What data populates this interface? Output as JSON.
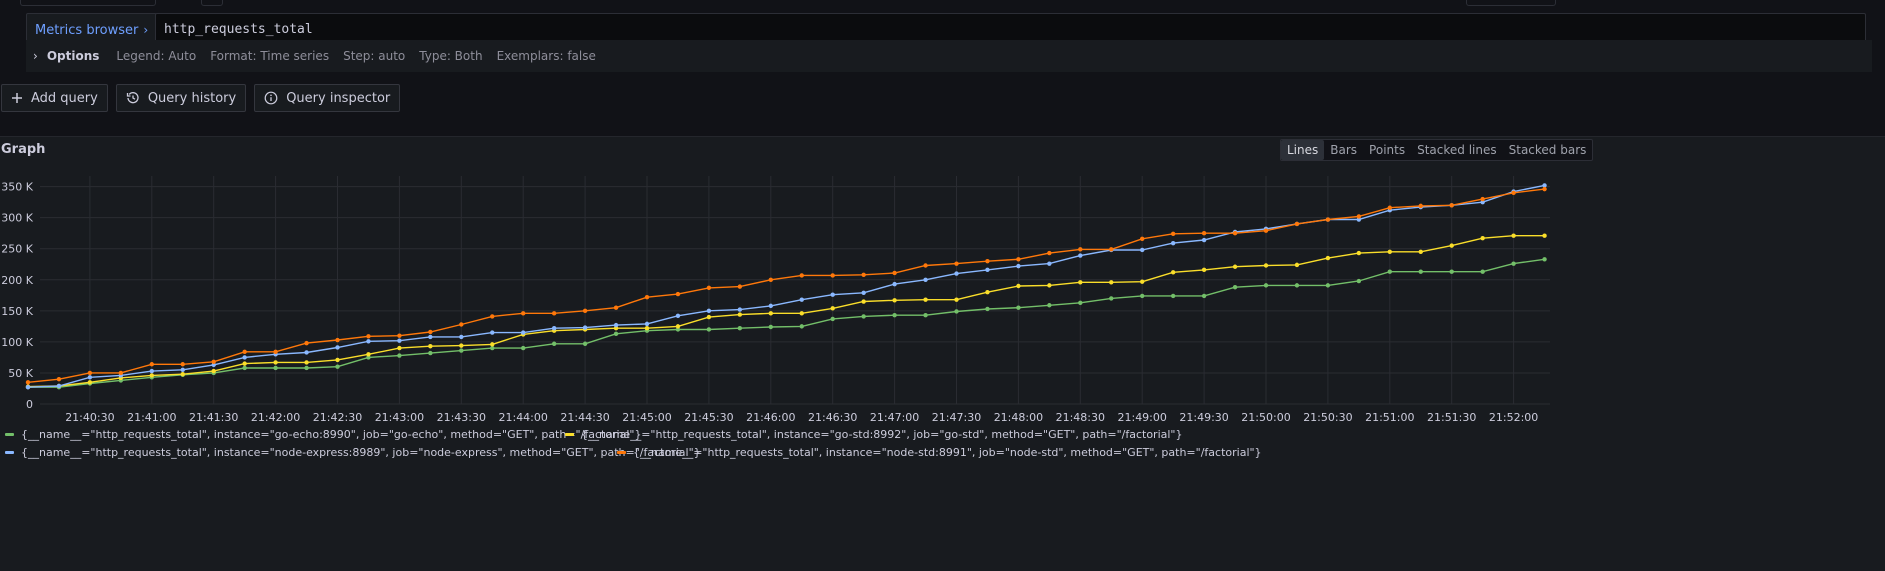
{
  "query": {
    "metrics_browser_label": "Metrics browser",
    "metrics_browser_chevron": "›",
    "expression": "http_requests_total"
  },
  "options": {
    "title": "Options",
    "items": [
      "Legend: Auto",
      "Format: Time series",
      "Step: auto",
      "Type: Both",
      "Exemplars: false"
    ]
  },
  "actions": {
    "add_query": "Add query",
    "query_history": "Query history",
    "query_inspector": "Query inspector"
  },
  "graph": {
    "title": "Graph",
    "modes": [
      "Lines",
      "Bars",
      "Points",
      "Stacked lines",
      "Stacked bars"
    ],
    "active_mode": "Lines"
  },
  "chart_data": {
    "type": "line",
    "x": [
      "21:40:00",
      "21:40:15",
      "21:40:30",
      "21:40:45",
      "21:41:00",
      "21:41:15",
      "21:41:30",
      "21:41:45",
      "21:42:00",
      "21:42:15",
      "21:42:30",
      "21:42:45",
      "21:43:00",
      "21:43:15",
      "21:43:30",
      "21:43:45",
      "21:44:00",
      "21:44:15",
      "21:44:30",
      "21:44:45",
      "21:45:00",
      "21:45:15",
      "21:45:30",
      "21:45:45",
      "21:46:00",
      "21:46:15",
      "21:46:30",
      "21:46:45",
      "21:47:00",
      "21:47:15",
      "21:47:30",
      "21:47:45",
      "21:48:00",
      "21:48:15",
      "21:48:30",
      "21:48:45",
      "21:49:00",
      "21:49:15",
      "21:49:30",
      "21:49:45",
      "21:50:00",
      "21:50:15",
      "21:50:30",
      "21:50:45",
      "21:51:00",
      "21:51:15",
      "21:51:30",
      "21:51:45",
      "21:52:00",
      "21:52:15"
    ],
    "x_tick_labels": [
      "21:40:30",
      "21:41:00",
      "21:41:30",
      "21:42:00",
      "21:42:30",
      "21:43:00",
      "21:43:30",
      "21:44:00",
      "21:44:30",
      "21:45:00",
      "21:45:30",
      "21:46:00",
      "21:46:30",
      "21:47:00",
      "21:47:30",
      "21:48:00",
      "21:48:30",
      "21:49:00",
      "21:49:30",
      "21:50:00",
      "21:50:30",
      "21:51:00",
      "21:51:30",
      "21:52:00"
    ],
    "y_ticks": [
      0,
      50000,
      100000,
      150000,
      200000,
      250000,
      300000,
      350000
    ],
    "y_tick_labels": [
      "0",
      "50 K",
      "100 K",
      "150 K",
      "200 K",
      "250 K",
      "300 K",
      "350 K"
    ],
    "ylim": [
      0,
      380000
    ],
    "grid": true,
    "legend_position": "bottom",
    "series": [
      {
        "name": "{__name__=\"http_requests_total\", instance=\"go-echo:8990\", job=\"go-echo\", method=\"GET\", path=\"/factorial\"}",
        "color": "#73bf69",
        "values": [
          27000,
          27000,
          33000,
          38000,
          43000,
          47000,
          50000,
          58000,
          58000,
          58000,
          60000,
          75000,
          78000,
          82000,
          86000,
          90000,
          90000,
          97000,
          97000,
          113000,
          118000,
          120000,
          120000,
          122000,
          124000,
          125000,
          137000,
          141000,
          143000,
          143000,
          149000,
          153000,
          155000,
          159000,
          163000,
          170000,
          174000,
          174000,
          174000,
          188000,
          191000,
          191000,
          191000,
          198000,
          213000,
          213000,
          213000,
          213000,
          226000,
          233000
        ]
      },
      {
        "name": "{__name__=\"http_requests_total\", instance=\"go-std:8992\", job=\"go-std\", method=\"GET\", path=\"/factorial\"}",
        "color": "#fade2a",
        "values": [
          28000,
          29000,
          35000,
          42000,
          46000,
          48000,
          53000,
          65000,
          67000,
          67000,
          71000,
          80000,
          90000,
          93000,
          94000,
          96000,
          112000,
          118000,
          120000,
          122000,
          122000,
          125000,
          140000,
          144000,
          146000,
          146000,
          154000,
          165000,
          167000,
          168000,
          168000,
          180000,
          190000,
          191000,
          196000,
          196000,
          197000,
          212000,
          216000,
          221000,
          223000,
          224000,
          235000,
          243000,
          245000,
          245000,
          255000,
          267000,
          271000,
          271000
        ]
      },
      {
        "name": "{__name__=\"http_requests_total\", instance=\"node-express:8989\", job=\"node-express\", method=\"GET\", path=\"/factorial\"}",
        "color": "#8ab8ff",
        "values": [
          27000,
          29000,
          43000,
          46000,
          53000,
          55000,
          63000,
          75000,
          80000,
          83000,
          91000,
          101000,
          102000,
          108000,
          108000,
          115000,
          115000,
          122000,
          123000,
          127000,
          129000,
          142000,
          150000,
          152000,
          158000,
          168000,
          176000,
          179000,
          193000,
          200000,
          210000,
          216000,
          222000,
          226000,
          239000,
          248000,
          248000,
          259000,
          264000,
          277000,
          282000,
          290000,
          297000,
          297000,
          312000,
          317000,
          320000,
          325000,
          342000,
          352000
        ]
      },
      {
        "name": "{__name__=\"http_requests_total\", instance=\"node-std:8991\", job=\"node-std\", method=\"GET\", path=\"/factorial\"}",
        "color": "#ff780a",
        "values": [
          35000,
          40000,
          50000,
          50000,
          64000,
          64000,
          68000,
          84000,
          84000,
          98000,
          103000,
          109000,
          110000,
          116000,
          128000,
          141000,
          146000,
          146000,
          150000,
          155000,
          172000,
          177000,
          187000,
          189000,
          200000,
          207000,
          207000,
          208000,
          211000,
          223000,
          226000,
          230000,
          233000,
          243000,
          249000,
          249000,
          266000,
          274000,
          275000,
          275000,
          279000,
          290000,
          297000,
          302000,
          316000,
          319000,
          320000,
          330000,
          340000,
          346000
        ]
      }
    ]
  }
}
